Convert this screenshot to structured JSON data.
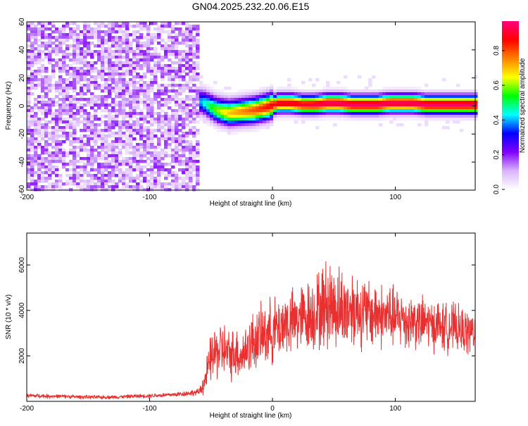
{
  "title": "GN04.2025.232.20.06.E15",
  "chart_data": [
    {
      "type": "heatmap",
      "xlabel": "Height of straight line (km)",
      "ylabel": "Frequency (Hz)",
      "xlim": [
        -200,
        165
      ],
      "ylim": [
        -60,
        60
      ],
      "x_ticks": [
        -200,
        -100,
        0,
        100
      ],
      "y_ticks": [
        -60,
        -40,
        -20,
        0,
        20,
        40,
        60
      ],
      "colorbar": {
        "label": "Normalized spectral amplitude",
        "range": [
          0,
          0.97
        ],
        "ticks": [
          0.0,
          0.2,
          0.4,
          0.6,
          0.8
        ],
        "colormap": [
          "#ffffff",
          "#d9b3ff",
          "#8000ff",
          "#0000ff",
          "#00ffff",
          "#00ff00",
          "#ffff00",
          "#ff8000",
          "#ff0000",
          "#ff0080"
        ]
      },
      "noise_region": {
        "x": [
          -200,
          -60
        ],
        "freq": [
          -60,
          60
        ],
        "amplitude": 0.1
      },
      "dominant_frequency": {
        "x": [
          -65,
          -55,
          -45,
          -35,
          -25,
          -15,
          -5,
          5,
          15,
          25,
          35,
          45,
          55,
          65,
          75,
          85,
          95,
          105,
          115,
          125,
          135,
          145,
          155,
          165
        ],
        "freq": [
          5,
          2,
          -3,
          -5,
          -4,
          -3,
          -1,
          2,
          2,
          1,
          1,
          2,
          2,
          1,
          1,
          1,
          2,
          2,
          2,
          1,
          1,
          1,
          1,
          1
        ],
        "amplitude": [
          0.3,
          0.45,
          0.6,
          0.7,
          0.75,
          0.8,
          0.85,
          0.9,
          0.9,
          0.9,
          0.92,
          0.95,
          0.95,
          0.95,
          0.95,
          0.95,
          0.95,
          0.95,
          0.95,
          0.95,
          0.95,
          0.95,
          0.95,
          0.95
        ]
      }
    },
    {
      "type": "line",
      "xlabel": "Height of straight line (km)",
      "ylabel": "SNR (10 * v/v)",
      "xlim": [
        -200,
        165
      ],
      "ylim": [
        0,
        7400
      ],
      "x_ticks": [
        -200,
        -100,
        0,
        100
      ],
      "y_ticks": [
        2000,
        4000,
        6000
      ],
      "color": "#e83030",
      "series": [
        {
          "x": [
            -200,
            -190,
            -180,
            -170,
            -160,
            -150,
            -140,
            -130,
            -120,
            -110,
            -100,
            -90,
            -80,
            -70,
            -60,
            -55,
            -50,
            -45,
            -40,
            -35,
            -30,
            -25,
            -20,
            -15,
            -10,
            -5,
            0,
            5,
            10,
            15,
            20,
            25,
            30,
            35,
            40,
            45,
            50,
            55,
            60,
            65,
            70,
            75,
            80,
            85,
            90,
            95,
            100,
            105,
            110,
            115,
            120,
            125,
            130,
            135,
            140,
            145,
            150,
            155,
            160,
            165
          ],
          "y": [
            250,
            240,
            230,
            220,
            200,
            190,
            180,
            190,
            210,
            230,
            250,
            270,
            300,
            350,
            400,
            900,
            1900,
            2200,
            2300,
            2000,
            2200,
            2000,
            2400,
            2700,
            2800,
            3000,
            3100,
            3200,
            3500,
            3400,
            3600,
            3700,
            3800,
            3900,
            4100,
            4300,
            4200,
            4100,
            4000,
            4200,
            4000,
            3900,
            3800,
            3900,
            3700,
            3800,
            3600,
            3700,
            3500,
            3600,
            3400,
            3500,
            3300,
            3400,
            3200,
            3300,
            3200,
            3100,
            3000,
            3100
          ],
          "spread": [
            120,
            110,
            110,
            100,
            100,
            100,
            100,
            100,
            100,
            110,
            110,
            120,
            130,
            150,
            180,
            700,
            1300,
            1500,
            1500,
            1300,
            1400,
            1300,
            1500,
            1600,
            1600,
            1700,
            1700,
            1700,
            1800,
            1700,
            1800,
            1800,
            1900,
            2000,
            2200,
            2500,
            2300,
            2200,
            2100,
            2100,
            2000,
            1900,
            1800,
            1800,
            1700,
            1700,
            1600,
            1600,
            1500,
            1500,
            1400,
            1400,
            1300,
            1300,
            1300,
            1300,
            1200,
            1200,
            1200,
            1200
          ]
        }
      ]
    }
  ]
}
